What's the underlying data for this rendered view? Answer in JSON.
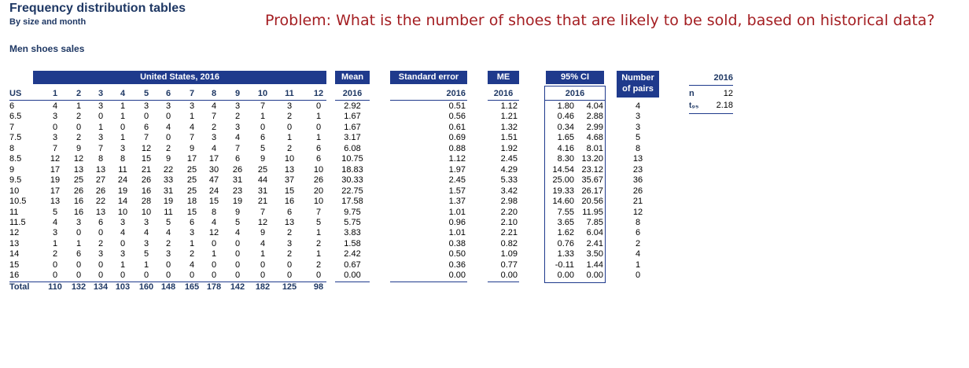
{
  "header": {
    "title": "Frequency distribution tables",
    "subtitle": "By size and month",
    "section": "Men shoes sales",
    "problem": "Problem: What is the number of shoes that are likely to be sold, based on historical data?"
  },
  "table": {
    "group_label": "United States, 2016",
    "row_header": "US",
    "months": [
      "1",
      "2",
      "3",
      "4",
      "5",
      "6",
      "7",
      "8",
      "9",
      "10",
      "11",
      "12"
    ],
    "rows": [
      {
        "size": "6",
        "vals": [
          "4",
          "1",
          "3",
          "1",
          "3",
          "3",
          "3",
          "4",
          "3",
          "7",
          "3",
          "0"
        ]
      },
      {
        "size": "6.5",
        "vals": [
          "3",
          "2",
          "0",
          "1",
          "0",
          "0",
          "1",
          "7",
          "2",
          "1",
          "2",
          "1"
        ]
      },
      {
        "size": "7",
        "vals": [
          "0",
          "0",
          "1",
          "0",
          "6",
          "4",
          "4",
          "2",
          "3",
          "0",
          "0",
          "0"
        ]
      },
      {
        "size": "7.5",
        "vals": [
          "3",
          "2",
          "3",
          "1",
          "7",
          "0",
          "7",
          "3",
          "4",
          "6",
          "1",
          "1"
        ]
      },
      {
        "size": "8",
        "vals": [
          "7",
          "9",
          "7",
          "3",
          "12",
          "2",
          "9",
          "4",
          "7",
          "5",
          "2",
          "6"
        ]
      },
      {
        "size": "8.5",
        "vals": [
          "12",
          "12",
          "8",
          "8",
          "15",
          "9",
          "17",
          "17",
          "6",
          "9",
          "10",
          "6"
        ]
      },
      {
        "size": "9",
        "vals": [
          "17",
          "13",
          "13",
          "11",
          "21",
          "22",
          "25",
          "30",
          "26",
          "25",
          "13",
          "10"
        ]
      },
      {
        "size": "9.5",
        "vals": [
          "19",
          "25",
          "27",
          "24",
          "26",
          "33",
          "25",
          "47",
          "31",
          "44",
          "37",
          "26"
        ]
      },
      {
        "size": "10",
        "vals": [
          "17",
          "26",
          "26",
          "19",
          "16",
          "31",
          "25",
          "24",
          "23",
          "31",
          "15",
          "20"
        ]
      },
      {
        "size": "10.5",
        "vals": [
          "13",
          "16",
          "22",
          "14",
          "28",
          "19",
          "18",
          "15",
          "19",
          "21",
          "16",
          "10"
        ]
      },
      {
        "size": "11",
        "vals": [
          "5",
          "16",
          "13",
          "10",
          "10",
          "11",
          "15",
          "8",
          "9",
          "7",
          "6",
          "7"
        ]
      },
      {
        "size": "11.5",
        "vals": [
          "4",
          "3",
          "6",
          "3",
          "3",
          "5",
          "6",
          "4",
          "5",
          "12",
          "13",
          "5"
        ]
      },
      {
        "size": "12",
        "vals": [
          "3",
          "0",
          "0",
          "4",
          "4",
          "4",
          "3",
          "12",
          "4",
          "9",
          "2",
          "1"
        ]
      },
      {
        "size": "13",
        "vals": [
          "1",
          "1",
          "2",
          "0",
          "3",
          "2",
          "1",
          "0",
          "0",
          "4",
          "3",
          "2"
        ]
      },
      {
        "size": "14",
        "vals": [
          "2",
          "6",
          "3",
          "3",
          "5",
          "3",
          "2",
          "1",
          "0",
          "1",
          "2",
          "1"
        ]
      },
      {
        "size": "15",
        "vals": [
          "0",
          "0",
          "0",
          "1",
          "1",
          "0",
          "4",
          "0",
          "0",
          "0",
          "0",
          "2"
        ]
      },
      {
        "size": "16",
        "vals": [
          "0",
          "0",
          "0",
          "0",
          "0",
          "0",
          "0",
          "0",
          "0",
          "0",
          "0",
          "0"
        ]
      }
    ],
    "total_label": "Total",
    "totals": [
      "110",
      "132",
      "134",
      "103",
      "160",
      "148",
      "165",
      "178",
      "142",
      "182",
      "125",
      "98"
    ]
  },
  "mean": {
    "label": "Mean",
    "year": "2016",
    "values": [
      "2.92",
      "1.67",
      "1.67",
      "3.17",
      "6.08",
      "10.75",
      "18.83",
      "30.33",
      "22.75",
      "17.58",
      "9.75",
      "5.75",
      "3.83",
      "1.58",
      "2.42",
      "0.67",
      "0.00"
    ]
  },
  "se": {
    "label": "Standard error",
    "year": "2016",
    "values": [
      "0.51",
      "0.56",
      "0.61",
      "0.69",
      "0.88",
      "1.12",
      "1.97",
      "2.45",
      "1.57",
      "1.37",
      "1.01",
      "0.96",
      "1.01",
      "0.38",
      "0.50",
      "0.36",
      "0.00"
    ]
  },
  "me": {
    "label": "ME",
    "year": "2016",
    "values": [
      "1.12",
      "1.21",
      "1.32",
      "1.51",
      "1.92",
      "2.45",
      "4.29",
      "5.33",
      "3.42",
      "2.98",
      "2.20",
      "2.10",
      "2.21",
      "0.82",
      "1.09",
      "0.77",
      "0.00"
    ]
  },
  "ci": {
    "label": "95% CI",
    "year": "2016",
    "low": [
      "1.80",
      "0.46",
      "0.34",
      "1.65",
      "4.16",
      "8.30",
      "14.54",
      "25.00",
      "19.33",
      "14.60",
      "7.55",
      "3.65",
      "1.62",
      "0.76",
      "1.33",
      "-0.11",
      "0.00"
    ],
    "high": [
      "4.04",
      "2.88",
      "2.99",
      "4.68",
      "8.01",
      "13.20",
      "23.12",
      "35.67",
      "26.17",
      "20.56",
      "11.95",
      "7.85",
      "6.04",
      "2.41",
      "3.50",
      "1.44",
      "0.00"
    ]
  },
  "pairs": {
    "label_line1": "Number",
    "label_line2": "of pairs",
    "values": [
      "4",
      "3",
      "3",
      "5",
      "8",
      "13",
      "23",
      "36",
      "26",
      "21",
      "12",
      "8",
      "6",
      "2",
      "4",
      "1",
      "0"
    ]
  },
  "stats": {
    "year": "2016",
    "n_label": "n",
    "n_value": "12",
    "t_label": "t₉₅",
    "t_value": "2.18"
  }
}
